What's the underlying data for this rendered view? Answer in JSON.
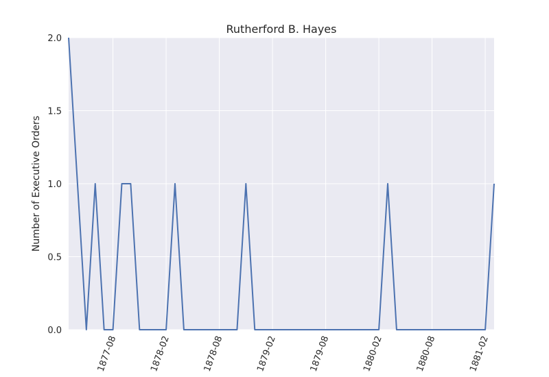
{
  "chart_data": {
    "type": "line",
    "title": "Rutherford B. Hayes",
    "xlabel": "",
    "ylabel": "Number of Executive Orders",
    "ylim": [
      0,
      2
    ],
    "y_ticks": [
      "0.0",
      "0.5",
      "1.0",
      "1.5",
      "2.0"
    ],
    "x_ticks": [
      "1877-08",
      "1878-02",
      "1878-08",
      "1879-02",
      "1879-08",
      "1880-02",
      "1880-08",
      "1881-02"
    ],
    "x": [
      "1877-03",
      "1877-04",
      "1877-05",
      "1877-06",
      "1877-07",
      "1877-08",
      "1877-09",
      "1877-10",
      "1877-11",
      "1877-12",
      "1878-01",
      "1878-02",
      "1878-03",
      "1878-04",
      "1878-05",
      "1878-06",
      "1878-07",
      "1878-08",
      "1878-09",
      "1878-10",
      "1878-11",
      "1878-12",
      "1879-01",
      "1879-02",
      "1879-03",
      "1879-04",
      "1879-05",
      "1879-06",
      "1879-07",
      "1879-08",
      "1879-09",
      "1879-10",
      "1879-11",
      "1879-12",
      "1880-01",
      "1880-02",
      "1880-03",
      "1880-04",
      "1880-05",
      "1880-06",
      "1880-07",
      "1880-08",
      "1880-09",
      "1880-10",
      "1880-11",
      "1880-12",
      "1881-01",
      "1881-02",
      "1881-03"
    ],
    "series": [
      {
        "values": [
          2,
          1,
          0,
          1,
          0,
          0,
          1,
          1,
          0,
          0,
          0,
          0,
          1,
          0,
          0,
          0,
          0,
          0,
          0,
          0,
          1,
          0,
          0,
          0,
          0,
          0,
          0,
          0,
          0,
          0,
          0,
          0,
          0,
          0,
          0,
          0,
          1,
          0,
          0,
          0,
          0,
          0,
          0,
          0,
          0,
          0,
          0,
          0,
          1
        ],
        "color": "#4c72b0"
      }
    ],
    "grid": true,
    "background": "#eaeaf2",
    "grid_color": "#ffffff"
  }
}
